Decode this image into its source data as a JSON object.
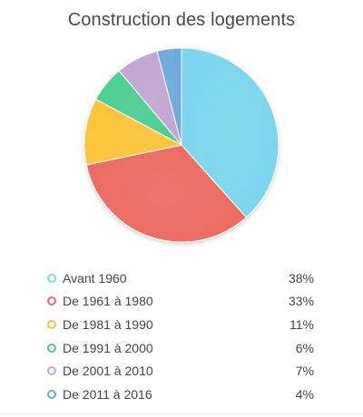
{
  "chart_data": {
    "type": "pie",
    "title": "Construction des logements",
    "categories": [
      "Avant 1960",
      "De 1961 à 1980",
      "De 1981 à 1990",
      "De 1991 à 2000",
      "De 2001 à 2010",
      "De 2011 à 2016"
    ],
    "values": [
      38,
      33,
      11,
      6,
      7,
      4
    ],
    "value_labels": [
      "38%",
      "33%",
      "11%",
      "6%",
      "7%",
      "4%"
    ],
    "colors": [
      "#7dd6ee",
      "#ec6c62",
      "#fdc53a",
      "#4ccf93",
      "#c3a6d4",
      "#6eaadf"
    ],
    "legend_position": "bottom"
  }
}
